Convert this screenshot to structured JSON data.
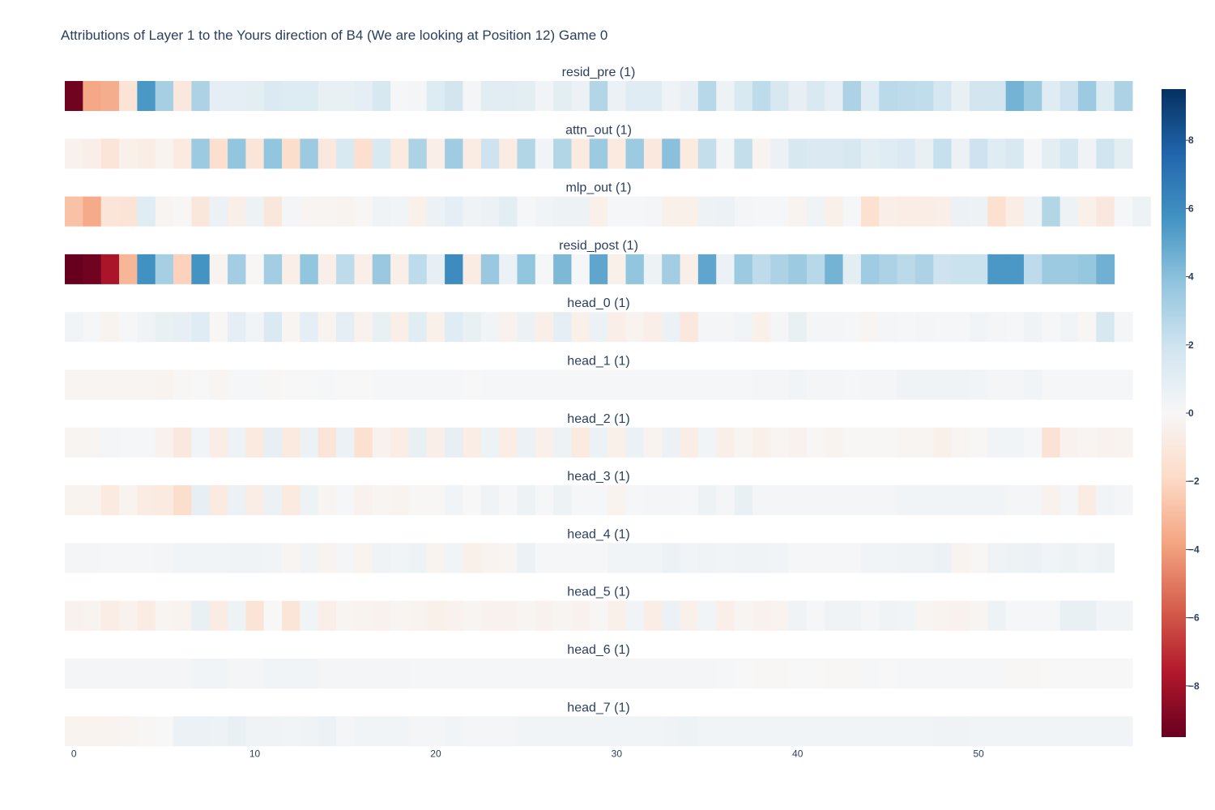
{
  "chart_data": {
    "type": "heatmap",
    "title": "Attributions of Layer 1 to the Yours direction of B4 (We are looking at Position 12) Game 0",
    "x_ticks": [
      0,
      10,
      20,
      30,
      40,
      50
    ],
    "x_range": [
      0,
      58
    ],
    "color_range": [
      -9.5,
      9.5
    ],
    "colorbar_ticks": [
      8,
      6,
      4,
      2,
      0,
      -2,
      -4,
      -6,
      -8
    ],
    "colorscale": "RdBu",
    "rows": [
      {
        "name": "resid_pre (1)",
        "values": [
          -9.3,
          -3.7,
          -3.5,
          -1.3,
          5.5,
          3.2,
          -1.0,
          3.0,
          0.9,
          0.9,
          1.0,
          1.4,
          1.3,
          1.3,
          0.7,
          0.7,
          0.9,
          1.6,
          0.1,
          0.2,
          1.3,
          1.8,
          0.2,
          1.1,
          1.1,
          1.0,
          0.3,
          1.0,
          0.6,
          2.8,
          0.6,
          1.2,
          1.2,
          0.4,
          0.8,
          2.7,
          0.5,
          1.5,
          2.5,
          1.6,
          0.8,
          1.5,
          0.9,
          3.0,
          1.2,
          2.6,
          2.5,
          2.4,
          1.7,
          0.7,
          1.8,
          1.8,
          4.5,
          3.5,
          1.2,
          2.0,
          3.5,
          1.3,
          3.0
        ]
      },
      {
        "name": "attn_out (1)",
        "values": [
          -0.4,
          -0.6,
          -1.2,
          -0.5,
          -0.7,
          -0.3,
          -0.9,
          3.5,
          -1.6,
          3.8,
          -1.2,
          3.8,
          -1.7,
          3.5,
          -1.0,
          1.5,
          -1.6,
          1.5,
          -0.9,
          3.0,
          -0.6,
          3.4,
          -0.8,
          2.0,
          -0.8,
          2.8,
          0.3,
          2.8,
          -0.9,
          3.5,
          -0.9,
          3.5,
          -1.0,
          4.0,
          -0.9,
          2.3,
          0.2,
          2.3,
          -0.3,
          0.6,
          1.6,
          1.4,
          1.4,
          1.6,
          1.0,
          1.2,
          1.4,
          0.7,
          2.2,
          0.6,
          2.0,
          1.2,
          1.5,
          0.1,
          1.0,
          1.7,
          0.4,
          1.9,
          1.0
        ]
      },
      {
        "name": "mlp_out (1)",
        "values": [
          -2.8,
          -3.6,
          -1.2,
          -1.3,
          1.2,
          -0.2,
          -0.1,
          -1.1,
          0.6,
          -0.6,
          0.5,
          -1.1,
          0.2,
          -0.2,
          -0.2,
          -0.3,
          -0.1,
          0.4,
          0.3,
          -0.5,
          0.6,
          0.9,
          0.4,
          0.6,
          1.0,
          0.1,
          0.3,
          0.5,
          0.5,
          -0.5,
          0.1,
          0.1,
          0.2,
          -0.5,
          -0.5,
          0.5,
          0.6,
          0.2,
          0.1,
          0.1,
          -0.3,
          0.4,
          -0.5,
          0.1,
          -1.5,
          -0.6,
          -0.7,
          -0.7,
          -0.6,
          0.6,
          0.5,
          -1.5,
          -0.7,
          0.4,
          2.8,
          0.5,
          -0.5,
          -1.0,
          0.1,
          0.5
        ]
      },
      {
        "name": "resid_post (1)",
        "values": [
          -9.5,
          -9.3,
          -7.8,
          -3.2,
          5.8,
          3.2,
          -2.2,
          5.7,
          -0.3,
          3.3,
          -0.1,
          3.3,
          -0.6,
          3.8,
          -0.6,
          2.5,
          -0.6,
          3.6,
          -0.6,
          2.5,
          0.8,
          6.0,
          -0.8,
          3.6,
          0.6,
          3.8,
          0.1,
          4.3,
          0.1,
          5.0,
          -0.5,
          3.8,
          0.5,
          3.3,
          -0.6,
          5.0,
          0.6,
          3.5,
          2.5,
          3.0,
          3.5,
          2.7,
          4.5,
          1.0,
          3.4,
          3.0,
          2.6,
          3.0,
          2.0,
          2.1,
          2.1,
          5.5,
          5.5,
          2.5,
          3.5,
          3.5,
          3.7,
          4.6
        ]
      },
      {
        "name": "head_0 (1)",
        "values": [
          0.3,
          0.1,
          -0.3,
          0.1,
          0.4,
          0.7,
          0.8,
          1.2,
          -0.1,
          0.9,
          0.3,
          1.4,
          -0.2,
          0.9,
          -0.3,
          0.9,
          -0.4,
          0.7,
          -0.6,
          1.1,
          -0.5,
          1.2,
          0.7,
          0.3,
          -0.4,
          0.6,
          -0.6,
          0.9,
          -0.5,
          0.6,
          -0.6,
          -0.3,
          -0.6,
          0.6,
          -1.0,
          0.2,
          0.2,
          0.3,
          -0.5,
          0.2,
          0.7,
          0.2,
          0.2,
          0.1,
          -0.2,
          0.2,
          0.1,
          0.2,
          0.1,
          0.1,
          0.3,
          0.2,
          0.1,
          0.4,
          0.1,
          0.3,
          -0.1,
          1.6,
          0.2
        ]
      },
      {
        "name": "head_1 (1)",
        "values": [
          -0.2,
          -0.2,
          -0.2,
          -0.2,
          -0.2,
          -0.3,
          -0.1,
          0.0,
          -0.2,
          0.1,
          0.1,
          -0.1,
          0.0,
          0.0,
          0.1,
          0.0,
          0.0,
          0.1,
          0.1,
          0.1,
          0.1,
          0.1,
          0.0,
          0.1,
          0.1,
          0.1,
          0.1,
          0.1,
          0.1,
          0.1,
          0.1,
          0.1,
          0.1,
          0.1,
          0.1,
          0.1,
          0.1,
          0.1,
          0.2,
          0.2,
          0.3,
          0.2,
          0.2,
          0.1,
          0.2,
          0.2,
          0.4,
          0.4,
          0.4,
          0.4,
          0.3,
          0.2,
          0.2,
          0.3,
          0.1,
          0.1,
          0.1,
          0.1,
          0.1
        ]
      },
      {
        "name": "head_2 (1)",
        "values": [
          -0.2,
          -0.2,
          0.2,
          0.1,
          0.1,
          -0.4,
          -1.0,
          0.3,
          -0.7,
          0.5,
          -0.9,
          0.8,
          -0.9,
          0.6,
          -1.2,
          0.6,
          -1.5,
          -0.4,
          -0.7,
          0.7,
          -0.6,
          0.8,
          -0.7,
          0.5,
          -0.7,
          0.6,
          -0.5,
          0.5,
          -0.9,
          0.6,
          -0.5,
          0.6,
          -0.3,
          0.6,
          -0.7,
          0.3,
          -0.6,
          -0.2,
          -0.5,
          -0.2,
          -0.4,
          -0.1,
          -0.3,
          -0.1,
          -0.1,
          -0.1,
          -0.2,
          -0.2,
          -0.5,
          -0.2,
          -0.1,
          0.3,
          0.3,
          0.1,
          -1.4,
          -0.4,
          -0.2,
          -0.4,
          -0.3
        ]
      },
      {
        "name": "head_3 (1)",
        "values": [
          -0.3,
          -0.3,
          -0.9,
          -0.3,
          -0.8,
          -0.9,
          -1.7,
          0.8,
          -0.9,
          0.6,
          -0.7,
          0.6,
          -0.9,
          0.5,
          -0.2,
          0.1,
          -0.4,
          -0.2,
          -0.3,
          -0.1,
          -0.1,
          0.3,
          0.0,
          0.4,
          0.1,
          0.5,
          0.1,
          0.5,
          0.1,
          0.1,
          -0.3,
          0.1,
          0.2,
          0.2,
          0.1,
          0.5,
          0.2,
          0.7,
          0.2,
          0.2,
          0.2,
          0.2,
          0.2,
          0.2,
          0.2,
          0.2,
          0.3,
          0.3,
          0.3,
          0.3,
          0.3,
          0.3,
          0.2,
          0.2,
          -0.4,
          0.2,
          -0.8,
          0.3,
          0.2
        ]
      },
      {
        "name": "head_4 (1)",
        "values": [
          0.2,
          0.2,
          0.1,
          0.1,
          0.1,
          0.2,
          0.3,
          0.3,
          0.3,
          0.4,
          0.4,
          0.3,
          -0.2,
          0.3,
          -0.3,
          0.2,
          -0.3,
          0.4,
          0.3,
          0.5,
          -0.3,
          0.3,
          -0.5,
          -0.3,
          -0.2,
          0.6,
          0.1,
          0.1,
          0.1,
          0.1,
          0.3,
          0.3,
          0.3,
          0.6,
          0.3,
          0.4,
          0.3,
          0.4,
          0.4,
          0.3,
          0.1,
          0.1,
          0.1,
          0.1,
          0.3,
          0.3,
          0.4,
          0.4,
          0.6,
          -0.3,
          -0.1,
          0.4,
          0.5,
          0.6,
          0.3,
          0.5,
          0.3,
          0.5
        ]
      },
      {
        "name": "head_5 (1)",
        "values": [
          -0.4,
          -0.3,
          -0.7,
          -0.4,
          -0.8,
          -0.2,
          -0.3,
          0.7,
          -0.8,
          0.5,
          -1.3,
          0.0,
          -1.2,
          0.3,
          -0.6,
          -0.2,
          -0.3,
          -0.4,
          -0.2,
          -0.3,
          -0.5,
          -0.4,
          -0.2,
          -0.4,
          -0.4,
          -0.2,
          -0.4,
          -0.2,
          -0.4,
          -0.1,
          -0.5,
          0.3,
          -0.7,
          0.6,
          -0.5,
          0.3,
          -0.6,
          -0.2,
          -0.4,
          -0.3,
          0.4,
          0.1,
          0.4,
          0.4,
          0.2,
          0.4,
          0.3,
          -0.2,
          -0.3,
          -0.4,
          -0.2,
          0.5,
          0.1,
          0.1,
          0.1,
          0.7,
          0.7,
          0.3,
          0.3
        ]
      },
      {
        "name": "head_6 (1)",
        "values": [
          0.2,
          0.2,
          0.2,
          0.2,
          0.2,
          0.2,
          0.2,
          0.3,
          0.3,
          0.2,
          0.2,
          0.3,
          0.3,
          0.3,
          0.2,
          0.2,
          0.2,
          0.2,
          0.2,
          0.1,
          0.1,
          0.1,
          0.1,
          0.1,
          0.1,
          0.1,
          0.1,
          0.1,
          0.1,
          0.2,
          0.2,
          0.2,
          0.2,
          0.2,
          0.2,
          0.2,
          0.1,
          0.0,
          -0.1,
          -0.1,
          0.0,
          0.0,
          -0.1,
          -0.1,
          0.1,
          0.0,
          0.1,
          0.1,
          0.1,
          0.1,
          0.1,
          0.1,
          -0.1,
          -0.1,
          0.0,
          0.0,
          0.0,
          0.0,
          0.0
        ]
      },
      {
        "name": "head_7 (1)",
        "values": [
          -0.3,
          -0.3,
          -0.3,
          -0.2,
          -0.1,
          0.0,
          0.6,
          0.6,
          0.5,
          0.7,
          0.4,
          0.4,
          0.3,
          0.4,
          0.6,
          0.2,
          0.3,
          0.3,
          0.3,
          0.2,
          0.2,
          0.3,
          0.2,
          0.2,
          0.2,
          0.3,
          0.3,
          0.3,
          0.3,
          0.3,
          0.3,
          0.3,
          0.3,
          0.4,
          0.5,
          0.3,
          0.3,
          0.3,
          0.3,
          0.3,
          0.3,
          0.3,
          0.3,
          0.3,
          0.3,
          0.3,
          0.3,
          0.3,
          0.4,
          0.4,
          0.3,
          0.3,
          0.3,
          0.3,
          0.3,
          0.3,
          0.3,
          0.3,
          0.3
        ]
      }
    ]
  }
}
